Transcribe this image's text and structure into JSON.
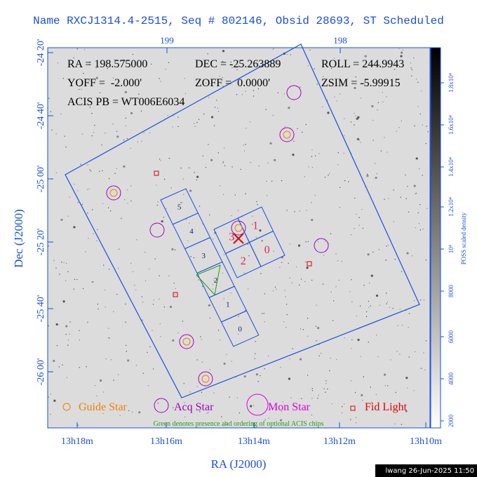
{
  "title": "Name RXCJ1314.4-2515, Seq # 802146, Obsid 28693, ST Scheduled",
  "top_axis": {
    "ticks": [
      "199",
      "198"
    ]
  },
  "left_axis": {
    "label": "Dec (J2000)",
    "ticks": [
      "-24 20'",
      "-24 40'",
      "-25 00'",
      "-25 20'",
      "-25 40'",
      "-26 00'"
    ]
  },
  "bottom_axis": {
    "label": "RA (J2000)",
    "ticks": [
      "13h18m",
      "13h16m",
      "13h14m",
      "13h12m",
      "13h10m"
    ]
  },
  "info": {
    "ra": "RA = 198.575000",
    "dec": "DEC = -25.263889",
    "roll": "ROLL = 244.9943",
    "yoff": "YOFF =  -2.000'",
    "zoff": "ZOFF =  0.0000'",
    "zsim": "ZSIM = -5.99915",
    "acis_pb": "ACIS PB = WT006E6034"
  },
  "chips": {
    "s_array": [
      "5",
      "4",
      "3",
      "2",
      "1",
      "0"
    ],
    "i_array": [
      "3",
      "1",
      "2",
      "0"
    ]
  },
  "legend": [
    "Guide Star",
    "Acq Star",
    "Mon Star",
    "Fid Light"
  ],
  "note": "Green denotes presence and ordering of optional ACIS chips",
  "colorbar": {
    "label": "POSS scaled density",
    "ticks": [
      "2000",
      "4000",
      "6000",
      "8000",
      "10⁴",
      "1.2x10⁴",
      "1.4x10⁴",
      "1.6x10⁴",
      "1.8x10⁴"
    ]
  },
  "footer": "lwang 26-Jun-2025 11:50"
}
